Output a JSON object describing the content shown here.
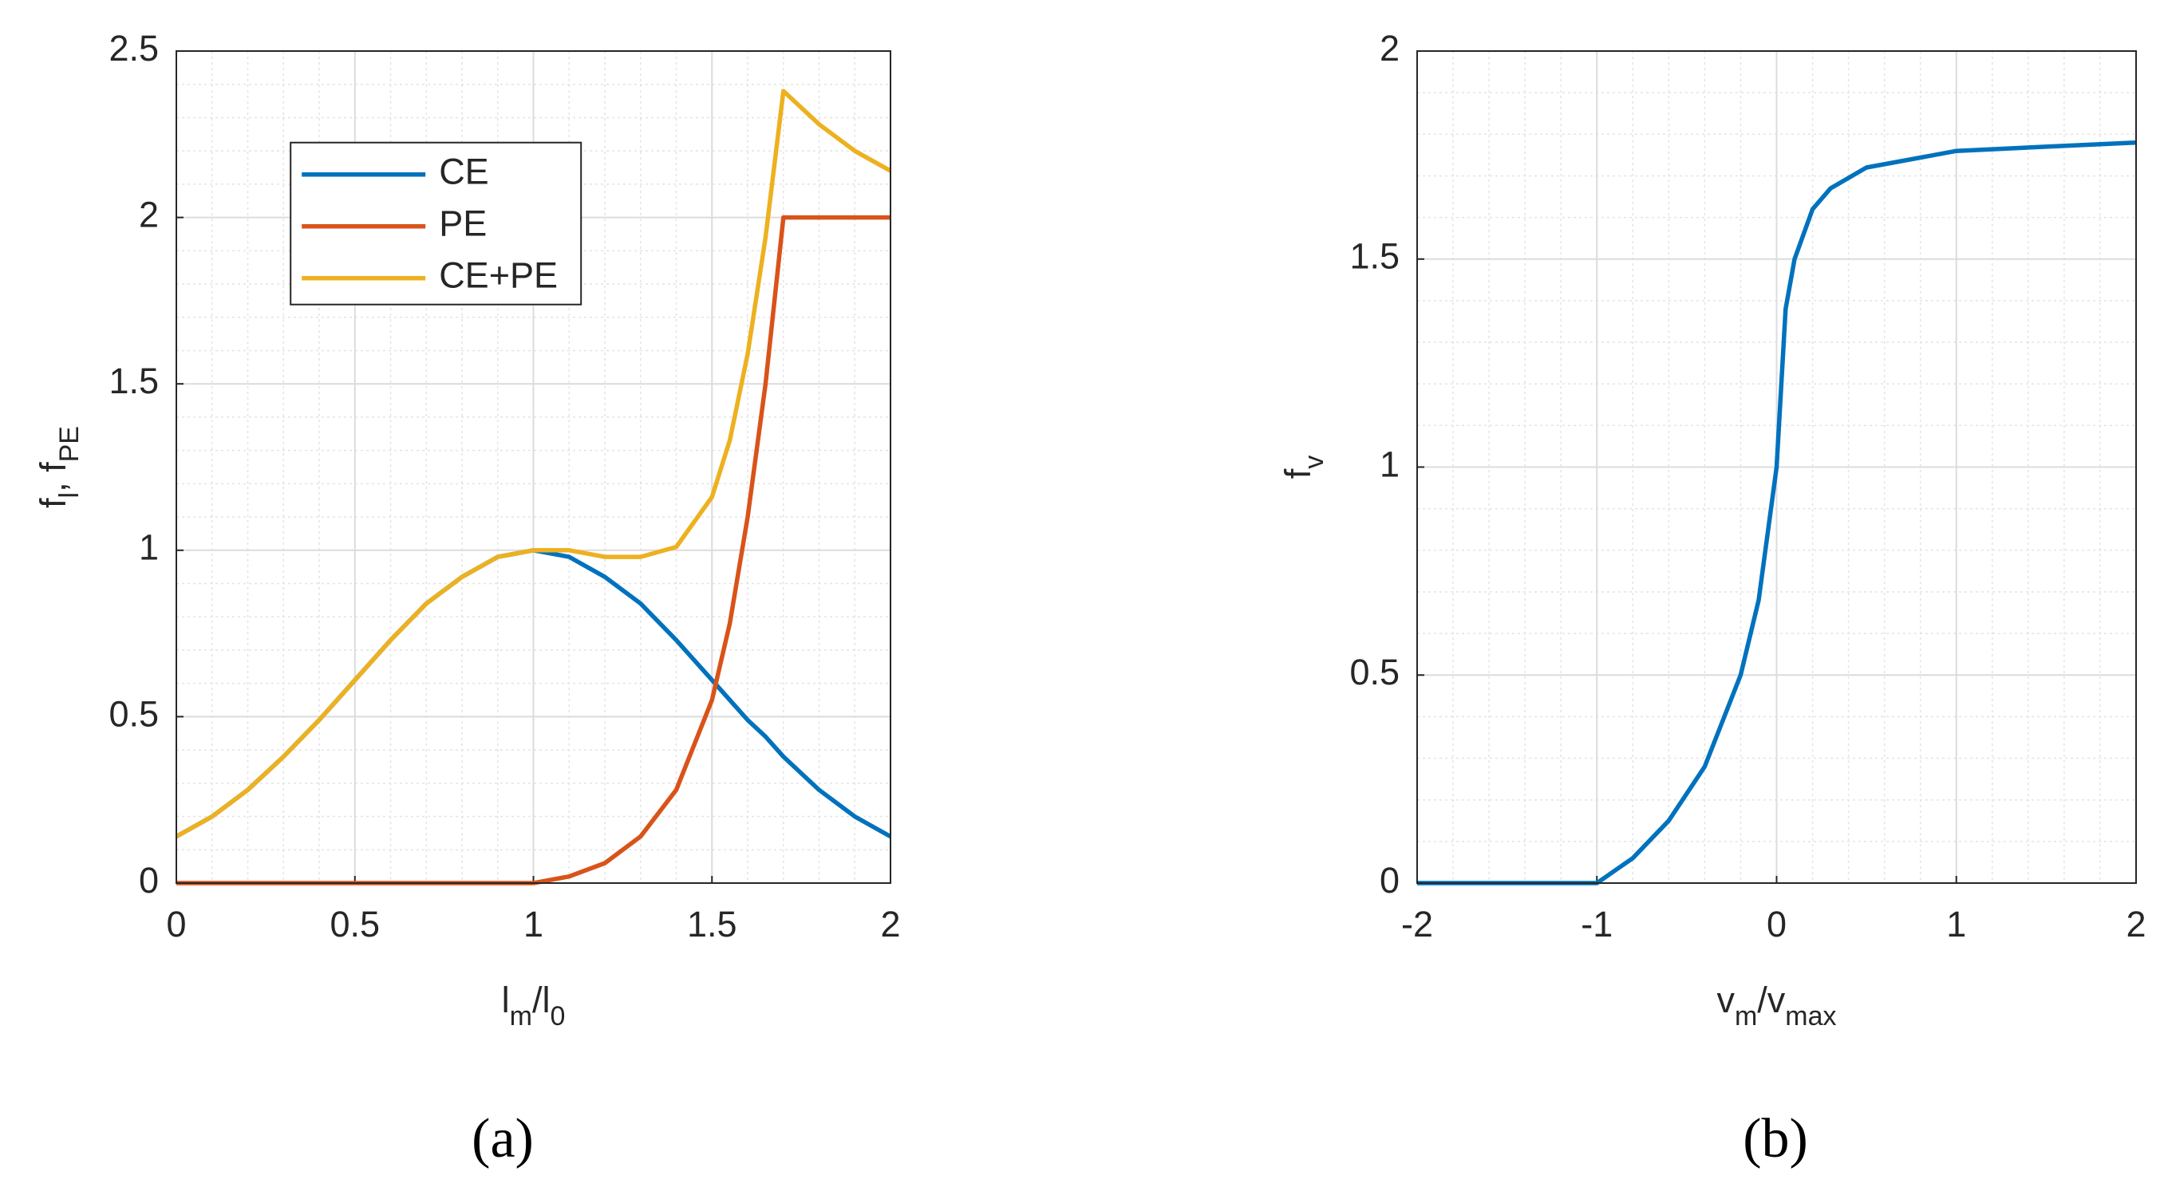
{
  "chart_data": [
    {
      "type": "line",
      "x": [
        0,
        0.1,
        0.2,
        0.3,
        0.4,
        0.5,
        0.6,
        0.7,
        0.8,
        0.9,
        1.0,
        1.1,
        1.2,
        1.3,
        1.4,
        1.5,
        1.55,
        1.6,
        1.65,
        1.7,
        1.8,
        1.9,
        2.0
      ],
      "series": [
        {
          "name": "CE",
          "color": "#0072bd",
          "values": [
            0.14,
            0.2,
            0.28,
            0.38,
            0.49,
            0.61,
            0.73,
            0.84,
            0.92,
            0.98,
            1.0,
            0.98,
            0.92,
            0.84,
            0.73,
            0.61,
            0.55,
            0.49,
            0.44,
            0.38,
            0.28,
            0.2,
            0.14
          ]
        },
        {
          "name": "PE",
          "color": "#d95319",
          "values": [
            0,
            0,
            0,
            0,
            0,
            0,
            0,
            0,
            0,
            0,
            0,
            0.02,
            0.06,
            0.14,
            0.28,
            0.55,
            0.78,
            1.1,
            1.5,
            2.0,
            2.0,
            2.0,
            2.0
          ]
        },
        {
          "name": "CE+PE",
          "color": "#edb120",
          "values": [
            0.14,
            0.2,
            0.28,
            0.38,
            0.49,
            0.61,
            0.73,
            0.84,
            0.92,
            0.98,
            1.0,
            1.0,
            0.98,
            0.98,
            1.01,
            1.16,
            1.33,
            1.59,
            1.94,
            2.38,
            2.28,
            2.2,
            2.14
          ]
        }
      ],
      "xlim": [
        0,
        2
      ],
      "xticks": [
        0,
        0.5,
        1,
        1.5,
        2
      ],
      "ylim": [
        0,
        2.5
      ],
      "yticks": [
        0,
        0.5,
        1,
        1.5,
        2,
        2.5
      ],
      "xminorticks": [
        0.1,
        0.2,
        0.3,
        0.4,
        0.6,
        0.7,
        0.8,
        0.9,
        1.1,
        1.2,
        1.3,
        1.4,
        1.6,
        1.7,
        1.8,
        1.9
      ],
      "yminorticks": [
        0.1,
        0.2,
        0.3,
        0.4,
        0.6,
        0.7,
        0.8,
        0.9,
        1.1,
        1.2,
        1.3,
        1.4,
        1.6,
        1.7,
        1.8,
        1.9,
        2.1,
        2.2,
        2.3,
        2.4
      ],
      "xlabel": [
        {
          "text": "l",
          "sub": false
        },
        {
          "text": "m",
          "sub": true
        },
        {
          "text": "/l",
          "sub": false
        },
        {
          "text": "0",
          "sub": true
        }
      ],
      "ylabel": [
        {
          "text": "f",
          "sub": false
        },
        {
          "text": "l",
          "sub": true
        },
        {
          "text": ", f",
          "sub": false
        },
        {
          "text": "PE",
          "sub": true
        }
      ],
      "grid": true,
      "legend": "upper left",
      "panel_label": "(a)"
    },
    {
      "type": "line",
      "x": [
        -2,
        -1,
        -0.8,
        -0.6,
        -0.4,
        -0.2,
        -0.1,
        0,
        0.05,
        0.1,
        0.2,
        0.3,
        0.5,
        1,
        1.5,
        2
      ],
      "series": [
        {
          "color": "#0072bd",
          "values": [
            0,
            0,
            0.06,
            0.15,
            0.28,
            0.5,
            0.68,
            1.0,
            1.38,
            1.5,
            1.62,
            1.67,
            1.72,
            1.76,
            1.77,
            1.78
          ]
        }
      ],
      "xlim": [
        -2,
        2
      ],
      "xticks": [
        -2,
        -1,
        0,
        1,
        2
      ],
      "ylim": [
        0,
        2
      ],
      "yticks": [
        0,
        0.5,
        1,
        1.5,
        2
      ],
      "xminorticks": [
        -1.8,
        -1.6,
        -1.4,
        -1.2,
        -0.8,
        -0.6,
        -0.4,
        -0.2,
        0.2,
        0.4,
        0.6,
        0.8,
        1.2,
        1.4,
        1.6,
        1.8
      ],
      "yminorticks": [
        0.1,
        0.2,
        0.3,
        0.4,
        0.6,
        0.7,
        0.8,
        0.9,
        1.1,
        1.2,
        1.3,
        1.4,
        1.6,
        1.7,
        1.8,
        1.9
      ],
      "xlabel": [
        {
          "text": "v",
          "sub": false
        },
        {
          "text": "m",
          "sub": true
        },
        {
          "text": "/v",
          "sub": false
        },
        {
          "text": "max",
          "sub": true
        }
      ],
      "ylabel": [
        {
          "text": "f",
          "sub": false
        },
        {
          "text": "v",
          "sub": true
        }
      ],
      "grid": true,
      "panel_label": "(b)"
    }
  ]
}
